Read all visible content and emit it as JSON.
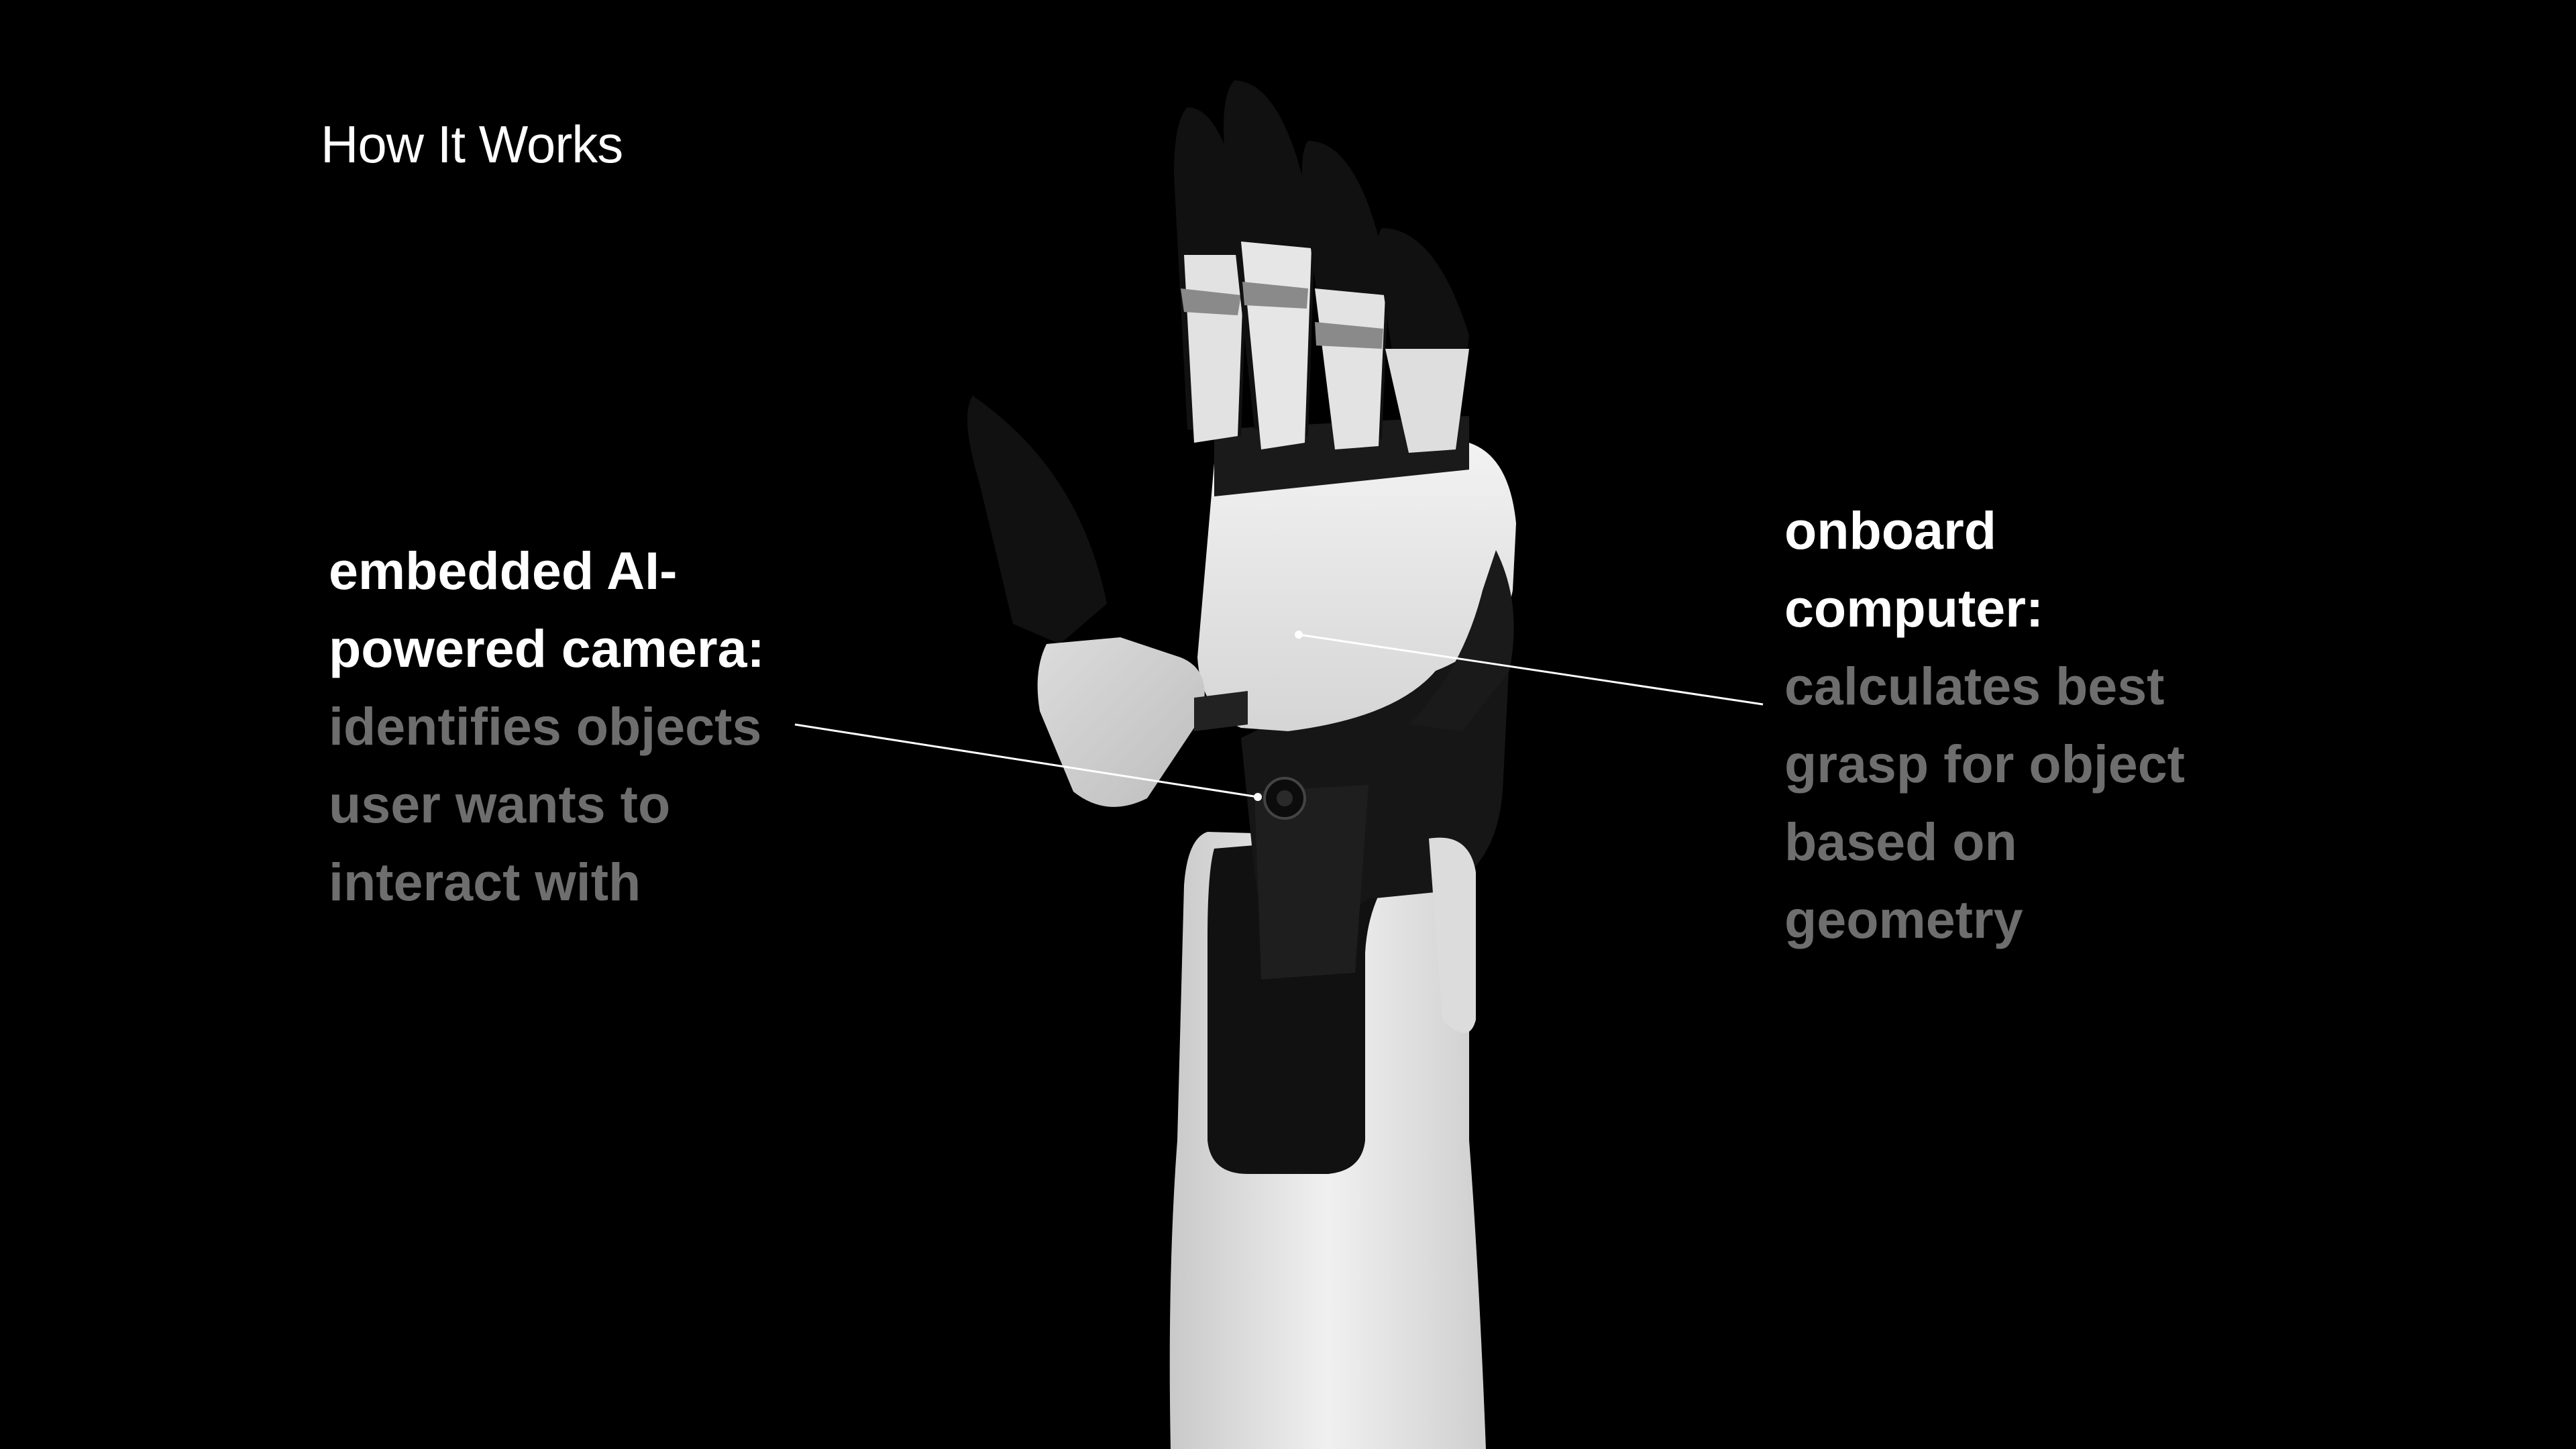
{
  "title": "How It Works",
  "callouts": {
    "camera": {
      "head": "embedded AI-powered camera:",
      "desc": "identifies objects user wants to interact with"
    },
    "computer": {
      "head": "onboard computer:",
      "desc": "calculates best grasp for object based on geometry"
    }
  },
  "colors": {
    "background": "#000000",
    "heading": "#ffffff",
    "description": "#6e6e6e",
    "shell": "#e6e6e6",
    "dark_part": "#141414"
  }
}
